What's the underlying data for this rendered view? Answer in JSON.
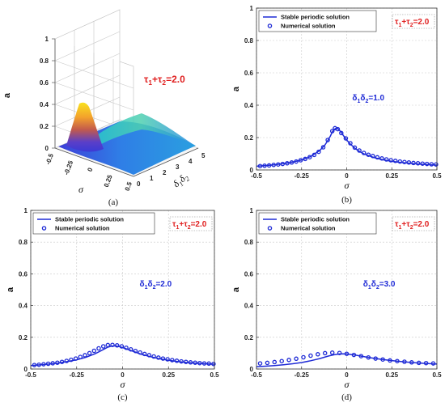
{
  "chart_data": [
    {
      "panel": "(a)",
      "type": "surface3d",
      "ylabel": "a",
      "xlabel_symbol": "σ",
      "zlabel_symbol": "δ1δ2",
      "annotation": "τ1+τ2=2.0",
      "x_ticks": [
        "-0.5",
        "-0.25",
        "0",
        "0.25",
        "0.5"
      ],
      "depth_ticks": [
        "0",
        "1",
        "2",
        "3",
        "4",
        "5"
      ],
      "y_ticks": [
        "0",
        "0.2",
        "0.4",
        "0.6",
        "0.8",
        "1"
      ],
      "xlim": [
        -0.5,
        0.5
      ],
      "depth_lim": [
        0,
        5
      ],
      "ylim": [
        0,
        1
      ],
      "peak": {
        "x": -0.05,
        "depth": 0,
        "y": 0.48
      },
      "colormap": "parula",
      "caption": "(a)"
    },
    {
      "panel": "(b)",
      "type": "line",
      "xlabel": "σ",
      "ylabel": "a",
      "xlim": [
        -0.5,
        0.5
      ],
      "ylim": [
        0,
        1
      ],
      "x_ticks": [
        "-0.5",
        "-0.25",
        "0",
        "0.25",
        "0.5"
      ],
      "y_ticks": [
        "0",
        "0.2",
        "0.4",
        "0.6",
        "0.8",
        "1"
      ],
      "grid": true,
      "legend": "top-left",
      "annotation_red": "τ1+τ2=2.0",
      "annotation_blue": "δ1δ2=1.0",
      "caption": "(b)",
      "series": [
        {
          "name": "Stable periodic solution",
          "style": "line",
          "x": [
            -0.5,
            -0.45,
            -0.4,
            -0.35,
            -0.3,
            -0.25,
            -0.2,
            -0.15,
            -0.12,
            -0.1,
            -0.09,
            -0.08,
            -0.07,
            -0.06,
            -0.05,
            -0.04,
            -0.03,
            -0.02,
            -0.01,
            0,
            0.02,
            0.05,
            0.08,
            0.1,
            0.15,
            0.2,
            0.25,
            0.3,
            0.35,
            0.4,
            0.45,
            0.5
          ],
          "y": [
            0.023,
            0.027,
            0.032,
            0.039,
            0.048,
            0.062,
            0.083,
            0.12,
            0.155,
            0.19,
            0.21,
            0.235,
            0.25,
            0.257,
            0.255,
            0.245,
            0.232,
            0.215,
            0.2,
            0.185,
            0.16,
            0.13,
            0.108,
            0.097,
            0.077,
            0.063,
            0.053,
            0.046,
            0.041,
            0.036,
            0.033,
            0.03
          ]
        },
        {
          "name": "Numerical solution",
          "style": "circle",
          "x": [
            -0.48,
            -0.455,
            -0.43,
            -0.405,
            -0.38,
            -0.355,
            -0.33,
            -0.305,
            -0.28,
            -0.255,
            -0.23,
            -0.205,
            -0.18,
            -0.155,
            -0.13,
            -0.105,
            -0.08,
            -0.065,
            -0.05,
            -0.03,
            -0.005,
            0.02,
            0.045,
            0.07,
            0.095,
            0.12,
            0.145,
            0.17,
            0.195,
            0.22,
            0.245,
            0.27,
            0.295,
            0.32,
            0.345,
            0.37,
            0.395,
            0.42,
            0.445,
            0.47,
            0.495
          ],
          "y": [
            0.024,
            0.026,
            0.028,
            0.031,
            0.034,
            0.037,
            0.041,
            0.046,
            0.052,
            0.06,
            0.068,
            0.079,
            0.093,
            0.112,
            0.14,
            0.185,
            0.24,
            0.258,
            0.252,
            0.228,
            0.195,
            0.165,
            0.138,
            0.12,
            0.105,
            0.094,
            0.086,
            0.078,
            0.071,
            0.065,
            0.06,
            0.056,
            0.052,
            0.049,
            0.046,
            0.043,
            0.041,
            0.039,
            0.037,
            0.035,
            0.034
          ]
        }
      ]
    },
    {
      "panel": "(c)",
      "type": "line",
      "xlabel": "σ",
      "ylabel": "a",
      "xlim": [
        -0.5,
        0.5
      ],
      "ylim": [
        0,
        1
      ],
      "x_ticks": [
        "-0.5",
        "-0.25",
        "0",
        "0.25",
        "0.5"
      ],
      "y_ticks": [
        "0",
        "0.2",
        "0.4",
        "0.6",
        "0.8",
        "1"
      ],
      "grid": true,
      "legend": "top-left",
      "annotation_red": "τ1+τ2=2.0",
      "annotation_blue": "δ1δ2=2.0",
      "caption": "(c)",
      "series": [
        {
          "name": "Stable periodic solution",
          "style": "line",
          "x": [
            -0.5,
            -0.45,
            -0.4,
            -0.35,
            -0.3,
            -0.25,
            -0.2,
            -0.15,
            -0.12,
            -0.1,
            -0.08,
            -0.06,
            -0.04,
            -0.02,
            0,
            0.05,
            0.1,
            0.15,
            0.2,
            0.25,
            0.3,
            0.35,
            0.4,
            0.45,
            0.5
          ],
          "y": [
            0.022,
            0.026,
            0.031,
            0.038,
            0.047,
            0.058,
            0.074,
            0.096,
            0.114,
            0.126,
            0.138,
            0.145,
            0.146,
            0.142,
            0.135,
            0.115,
            0.094,
            0.078,
            0.065,
            0.055,
            0.047,
            0.041,
            0.037,
            0.033,
            0.03
          ]
        },
        {
          "name": "Numerical solution",
          "style": "circle",
          "x": [
            -0.48,
            -0.455,
            -0.43,
            -0.405,
            -0.38,
            -0.355,
            -0.33,
            -0.305,
            -0.28,
            -0.255,
            -0.23,
            -0.205,
            -0.18,
            -0.155,
            -0.13,
            -0.105,
            -0.08,
            -0.055,
            -0.03,
            -0.005,
            0.02,
            0.045,
            0.07,
            0.095,
            0.12,
            0.145,
            0.17,
            0.195,
            0.22,
            0.245,
            0.27,
            0.295,
            0.32,
            0.345,
            0.37,
            0.395,
            0.42,
            0.445,
            0.47,
            0.495
          ],
          "y": [
            0.025,
            0.027,
            0.03,
            0.033,
            0.036,
            0.04,
            0.045,
            0.051,
            0.058,
            0.066,
            0.076,
            0.087,
            0.1,
            0.115,
            0.13,
            0.143,
            0.151,
            0.152,
            0.149,
            0.143,
            0.134,
            0.124,
            0.114,
            0.104,
            0.095,
            0.087,
            0.079,
            0.072,
            0.066,
            0.061,
            0.056,
            0.052,
            0.048,
            0.045,
            0.042,
            0.04,
            0.037,
            0.035,
            0.034,
            0.032
          ]
        }
      ]
    },
    {
      "panel": "(d)",
      "type": "line",
      "xlabel": "σ",
      "ylabel": "a",
      "xlim": [
        -0.5,
        0.5
      ],
      "ylim": [
        0,
        1
      ],
      "x_ticks": [
        "-0.5",
        "-0.25",
        "0",
        "0.25",
        "0.5"
      ],
      "y_ticks": [
        "0",
        "0.2",
        "0.4",
        "0.6",
        "0.8",
        "1"
      ],
      "grid": true,
      "legend": "top-left",
      "annotation_red": "τ1+τ2=2.0",
      "annotation_blue": "δ1δ2=3.0",
      "caption": "(d)",
      "series": [
        {
          "name": "Stable periodic solution",
          "style": "line",
          "x": [
            -0.5,
            -0.45,
            -0.4,
            -0.35,
            -0.3,
            -0.25,
            -0.2,
            -0.15,
            -0.1,
            -0.07,
            -0.04,
            -0.02,
            0,
            0.05,
            0.1,
            0.15,
            0.2,
            0.25,
            0.3,
            0.35,
            0.4,
            0.45,
            0.5
          ],
          "y": [
            0.015,
            0.018,
            0.022,
            0.027,
            0.033,
            0.041,
            0.052,
            0.066,
            0.082,
            0.09,
            0.095,
            0.096,
            0.095,
            0.087,
            0.077,
            0.068,
            0.06,
            0.053,
            0.047,
            0.042,
            0.038,
            0.034,
            0.031
          ]
        },
        {
          "name": "Numerical solution",
          "style": "circle",
          "x": [
            -0.48,
            -0.44,
            -0.4,
            -0.36,
            -0.32,
            -0.28,
            -0.24,
            -0.2,
            -0.16,
            -0.12,
            -0.08,
            -0.04,
            0,
            0.04,
            0.08,
            0.12,
            0.16,
            0.2,
            0.24,
            0.28,
            0.32,
            0.36,
            0.4,
            0.44,
            0.48
          ],
          "y": [
            0.035,
            0.039,
            0.044,
            0.05,
            0.057,
            0.065,
            0.074,
            0.084,
            0.093,
            0.1,
            0.103,
            0.101,
            0.096,
            0.089,
            0.081,
            0.073,
            0.066,
            0.06,
            0.054,
            0.05,
            0.046,
            0.042,
            0.039,
            0.037,
            0.035
          ]
        }
      ]
    }
  ]
}
